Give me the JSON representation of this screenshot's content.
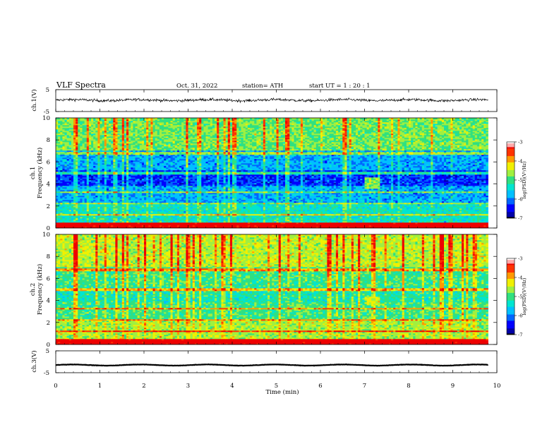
{
  "header": {
    "title": "VLF  Spectra",
    "date": "Oct. 31, 2022",
    "station": "station= ATH",
    "start_ut": "start  UT  =    1  : 20 : 1"
  },
  "colormap": [
    "#000000",
    "#0000a8",
    "#0000ff",
    "#0066ff",
    "#00c0ff",
    "#00e5d0",
    "#30e080",
    "#a0f040",
    "#f0f000",
    "#ff9900",
    "#ff3300",
    "#ee0000",
    "#ffffff"
  ],
  "chart_data": [
    {
      "type": "line",
      "name": "ch1-waveform",
      "ylabel": "ch.1(V)",
      "ylim": [
        -5,
        5
      ],
      "yticks": [
        "5",
        "-5"
      ],
      "xlim": [
        0,
        10
      ],
      "x_extent": [
        0,
        9.8
      ],
      "approx_mean": 0.2,
      "approx_amplitude": 0.6,
      "color": "#000000"
    },
    {
      "type": "heatmap",
      "name": "ch1-spectrogram",
      "ylabel_lines": [
        "ch.1",
        "Frequency  (kHz)"
      ],
      "ylim": [
        0,
        10
      ],
      "yticks": [
        "0",
        "2",
        "4",
        "6",
        "8",
        "10"
      ],
      "xlim": [
        0,
        10
      ],
      "x_extent": [
        0,
        9.8
      ],
      "colorbar": {
        "label": "log(PSD)(V²/Hz)",
        "range": [
          -7,
          -3
        ],
        "ticks": [
          "-3",
          "-4",
          "-5",
          "-6",
          "-7"
        ]
      },
      "approx_level_profile": [
        {
          "f_khz": [
            0.0,
            0.5
          ],
          "log_psd": -3.0
        },
        {
          "f_khz": [
            0.5,
            2.2
          ],
          "log_psd": -5.3
        },
        {
          "f_khz": [
            2.2,
            3.8
          ],
          "log_psd": -5.8
        },
        {
          "f_khz": [
            3.8,
            5.2
          ],
          "log_psd": -6.3
        },
        {
          "f_khz": [
            5.2,
            7.0
          ],
          "log_psd": -5.8
        },
        {
          "f_khz": [
            7.0,
            10.0
          ],
          "log_psd": -4.8
        }
      ],
      "approx_enhancement": {
        "time_min": [
          7.0,
          7.35
        ],
        "f_khz": [
          3.6,
          4.6
        ],
        "log_psd": -4.7
      }
    },
    {
      "type": "heatmap",
      "name": "ch2-spectrogram",
      "ylabel_lines": [
        "ch.2",
        "Frequency  (kHz)"
      ],
      "ylim": [
        0,
        10
      ],
      "yticks": [
        "0",
        "2",
        "4",
        "6",
        "8",
        "10"
      ],
      "xlim": [
        0,
        10
      ],
      "x_extent": [
        0,
        9.8
      ],
      "colorbar": {
        "label": "log(PSD)(V²/Hz)",
        "range": [
          -7,
          -3
        ],
        "ticks": [
          "-3",
          "-4",
          "-5",
          "-6",
          "-7"
        ]
      },
      "approx_level_profile": [
        {
          "f_khz": [
            0.0,
            0.5
          ],
          "log_psd": -3.0
        },
        {
          "f_khz": [
            0.5,
            2.2
          ],
          "log_psd": -4.6
        },
        {
          "f_khz": [
            2.2,
            3.8
          ],
          "log_psd": -5.0
        },
        {
          "f_khz": [
            3.8,
            5.2
          ],
          "log_psd": -5.2
        },
        {
          "f_khz": [
            5.2,
            7.0
          ],
          "log_psd": -5.0
        },
        {
          "f_khz": [
            7.0,
            10.0
          ],
          "log_psd": -4.5
        }
      ],
      "approx_enhancement": {
        "time_min": [
          7.0,
          7.35
        ],
        "f_khz": [
          3.6,
          4.3
        ],
        "log_psd": -4.4
      }
    },
    {
      "type": "line",
      "name": "ch3-waveform",
      "ylabel": "ch.3(V)",
      "ylim": [
        -5,
        5
      ],
      "yticks": [
        "5",
        "-5"
      ],
      "xlim": [
        0,
        10
      ],
      "x_extent": [
        0,
        9.8
      ],
      "approx_mean": -1.5,
      "approx_amplitude": 0.25,
      "color": "#000000"
    }
  ],
  "x_axis": {
    "label": "Time  (min)",
    "ticks": [
      "0",
      "1",
      "2",
      "3",
      "4",
      "5",
      "6",
      "7",
      "8",
      "9",
      "10"
    ]
  }
}
